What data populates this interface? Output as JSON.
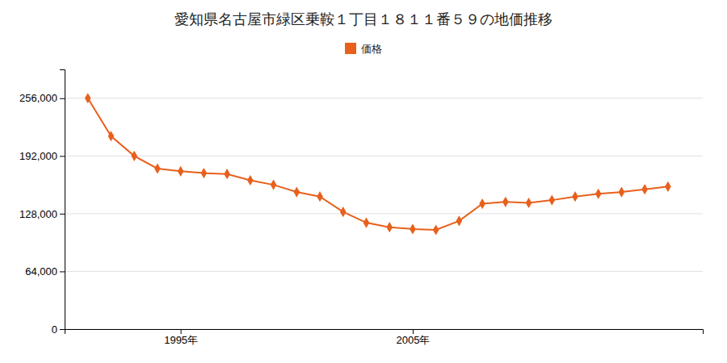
{
  "chart_data": {
    "type": "line",
    "title": "愛知県名古屋市緑区乗鞍１丁目１８１１番５９の地価推移",
    "x": [
      1991,
      1992,
      1993,
      1994,
      1995,
      1996,
      1997,
      1998,
      1999,
      2000,
      2001,
      2002,
      2003,
      2004,
      2005,
      2006,
      2007,
      2008,
      2009,
      2010,
      2011,
      2012,
      2013,
      2014,
      2015,
      2016
    ],
    "series": [
      {
        "name": "価格",
        "color": "#e8601c",
        "marker": "diamond",
        "line_style": "solid",
        "values": [
          256000,
          214000,
          192000,
          178000,
          175000,
          173000,
          172000,
          165000,
          160000,
          152000,
          147000,
          130000,
          118000,
          113000,
          111000,
          110000,
          120000,
          139000,
          141000,
          140000,
          143000,
          147000,
          150000,
          152000,
          155000,
          158000
        ]
      }
    ],
    "xlim": [
      1990,
      2017.5
    ],
    "xticks": [
      {
        "value": 1995,
        "label": "1995年"
      },
      {
        "value": 2005,
        "label": "2005年"
      }
    ],
    "ylim": [
      0,
      288000
    ],
    "yticks": [
      0,
      {
        "value": 64000,
        "label": "64,000"
      },
      {
        "value": 128000,
        "label": "128,000"
      },
      {
        "value": 192000,
        "label": "192,000"
      },
      {
        "value": 256000,
        "label": "256,000"
      }
    ],
    "grid": true,
    "legend": "top"
  }
}
